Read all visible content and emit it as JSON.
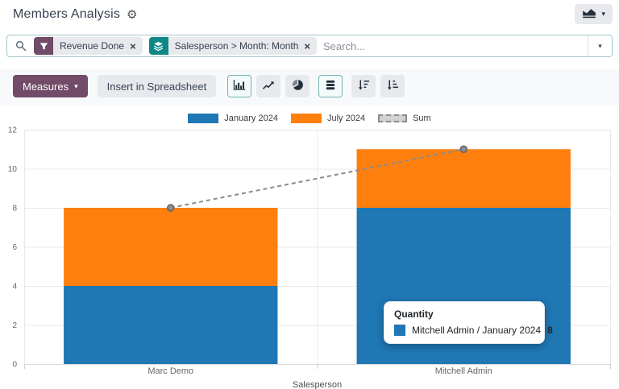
{
  "header": {
    "title": "Members Analysis",
    "gear_icon": "gear-icon",
    "view_switcher": {
      "icon": "area-chart-icon",
      "caret": "▾"
    }
  },
  "search": {
    "placeholder": "Search...",
    "facets": [
      {
        "icon": "filter-icon",
        "color": "#714B67",
        "label": "Revenue Done",
        "remove": "×"
      },
      {
        "icon": "group-by-icon",
        "color": "#0E8789",
        "label": "Salesperson > Month: Month",
        "remove": "×"
      }
    ],
    "caret": "▾"
  },
  "toolbar": {
    "measures_label": "Measures",
    "measures_caret": "▾",
    "insert_label": "Insert in Spreadsheet",
    "chart_type_buttons": [
      {
        "name": "bar-chart",
        "active": true
      },
      {
        "name": "line-chart",
        "active": false
      },
      {
        "name": "pie-chart",
        "active": false
      },
      {
        "name": "stacked",
        "active": true
      },
      {
        "name": "sort-descending",
        "active": false
      },
      {
        "name": "sort-ascending",
        "active": false
      }
    ]
  },
  "chart_data": {
    "type": "bar",
    "stacked": true,
    "categories": [
      "Marc Demo",
      "Mitchell Admin"
    ],
    "series": [
      {
        "name": "January 2024",
        "type": "bar",
        "color": "#1f77b4",
        "values": [
          4,
          8
        ]
      },
      {
        "name": "July 2024",
        "type": "bar",
        "color": "#ff7f0e",
        "values": [
          4,
          3
        ]
      },
      {
        "name": "Sum",
        "type": "line",
        "dashed": true,
        "color": "#8b8b8b",
        "values": [
          8,
          11
        ]
      }
    ],
    "xlabel": "Salesperson",
    "ylabel": "",
    "ylim": [
      0,
      12
    ],
    "ytick_step": 2,
    "grid": true,
    "legend_position": "top"
  },
  "tooltip": {
    "title": "Quantity",
    "rows": [
      {
        "color": "#1f77b4",
        "label": "Mitchell Admin / January 2024",
        "value": "8"
      }
    ]
  }
}
